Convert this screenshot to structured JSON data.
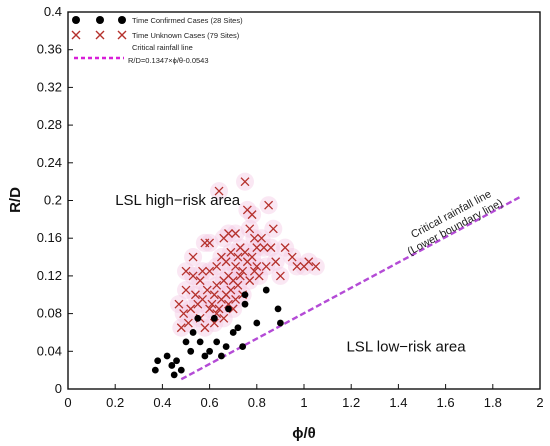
{
  "chart_data": {
    "type": "scatter",
    "xlabel": "ϕ/θ",
    "ylabel": "R/D",
    "xlim": [
      0,
      2
    ],
    "ylim": [
      0,
      0.4
    ],
    "x_ticks": [
      "0",
      "0.2",
      "0.4",
      "0.6",
      "0.8",
      "1",
      "1.2",
      "1.4",
      "1.6",
      "1.8",
      "2"
    ],
    "y_ticks": [
      "0",
      "0.04",
      "0.08",
      "0.12",
      "0.16",
      "0.2",
      "0.24",
      "0.28",
      "0.32",
      "0.36",
      "0.4"
    ],
    "grid": false,
    "legend_position": "top-left",
    "series": [
      {
        "name": "Time Confirmed Cases (28 Sites)",
        "marker": "filled-circle",
        "color": "#000000",
        "points": [
          [
            0.37,
            0.02
          ],
          [
            0.38,
            0.03
          ],
          [
            0.42,
            0.035
          ],
          [
            0.44,
            0.025
          ],
          [
            0.45,
            0.015
          ],
          [
            0.46,
            0.03
          ],
          [
            0.48,
            0.02
          ],
          [
            0.5,
            0.05
          ],
          [
            0.52,
            0.04
          ],
          [
            0.53,
            0.06
          ],
          [
            0.55,
            0.075
          ],
          [
            0.56,
            0.05
          ],
          [
            0.58,
            0.035
          ],
          [
            0.6,
            0.04
          ],
          [
            0.62,
            0.075
          ],
          [
            0.63,
            0.05
          ],
          [
            0.65,
            0.035
          ],
          [
            0.67,
            0.045
          ],
          [
            0.68,
            0.085
          ],
          [
            0.7,
            0.06
          ],
          [
            0.72,
            0.065
          ],
          [
            0.74,
            0.045
          ],
          [
            0.75,
            0.09
          ],
          [
            0.75,
            0.1
          ],
          [
            0.8,
            0.07
          ],
          [
            0.84,
            0.105
          ],
          [
            0.89,
            0.085
          ],
          [
            0.9,
            0.07
          ]
        ]
      },
      {
        "name": "Time Unknown Cases (79 Sites)",
        "marker": "x",
        "color": "#b5312c",
        "points": [
          [
            0.47,
            0.09
          ],
          [
            0.48,
            0.065
          ],
          [
            0.49,
            0.08
          ],
          [
            0.5,
            0.105
          ],
          [
            0.51,
            0.07
          ],
          [
            0.52,
            0.085
          ],
          [
            0.53,
            0.12
          ],
          [
            0.54,
            0.1
          ],
          [
            0.55,
            0.09
          ],
          [
            0.56,
            0.075
          ],
          [
            0.56,
            0.115
          ],
          [
            0.57,
            0.095
          ],
          [
            0.58,
            0.155
          ],
          [
            0.58,
            0.065
          ],
          [
            0.59,
            0.105
          ],
          [
            0.6,
            0.125
          ],
          [
            0.6,
            0.085
          ],
          [
            0.61,
            0.09
          ],
          [
            0.62,
            0.1
          ],
          [
            0.62,
            0.07
          ],
          [
            0.63,
            0.11
          ],
          [
            0.63,
            0.13
          ],
          [
            0.64,
            0.085
          ],
          [
            0.64,
            0.21
          ],
          [
            0.65,
            0.095
          ],
          [
            0.65,
            0.14
          ],
          [
            0.66,
            0.115
          ],
          [
            0.66,
            0.075
          ],
          [
            0.67,
            0.1
          ],
          [
            0.67,
            0.135
          ],
          [
            0.68,
            0.09
          ],
          [
            0.68,
            0.12
          ],
          [
            0.69,
            0.145
          ],
          [
            0.69,
            0.105
          ],
          [
            0.7,
            0.115
          ],
          [
            0.7,
            0.085
          ],
          [
            0.71,
            0.13
          ],
          [
            0.71,
            0.095
          ],
          [
            0.72,
            0.14
          ],
          [
            0.72,
            0.11
          ],
          [
            0.73,
            0.15
          ],
          [
            0.73,
            0.12
          ],
          [
            0.74,
            0.125
          ],
          [
            0.74,
            0.1
          ],
          [
            0.75,
            0.145
          ],
          [
            0.75,
            0.22
          ],
          [
            0.76,
            0.19
          ],
          [
            0.76,
            0.135
          ],
          [
            0.77,
            0.115
          ],
          [
            0.77,
            0.17
          ],
          [
            0.78,
            0.14
          ],
          [
            0.78,
            0.185
          ],
          [
            0.79,
            0.125
          ],
          [
            0.8,
            0.13
          ],
          [
            0.8,
            0.15
          ],
          [
            0.81,
            0.12
          ],
          [
            0.82,
            0.16
          ],
          [
            0.83,
            0.15
          ],
          [
            0.84,
            0.13
          ],
          [
            0.85,
            0.195
          ],
          [
            0.86,
            0.15
          ],
          [
            0.88,
            0.135
          ],
          [
            0.9,
            0.12
          ],
          [
            0.92,
            0.15
          ],
          [
            0.95,
            0.14
          ],
          [
            0.97,
            0.13
          ],
          [
            1.0,
            0.13
          ],
          [
            1.02,
            0.135
          ],
          [
            1.05,
            0.13
          ],
          [
            0.53,
            0.14
          ],
          [
            0.6,
            0.155
          ],
          [
            0.66,
            0.16
          ],
          [
            0.71,
            0.165
          ],
          [
            0.79,
            0.16
          ],
          [
            0.87,
            0.17
          ],
          [
            0.5,
            0.125
          ],
          [
            0.57,
            0.125
          ],
          [
            0.63,
            0.08
          ],
          [
            0.68,
            0.165
          ]
        ]
      }
    ],
    "critical_line": {
      "legend_label": "Critical rainfall line",
      "equation_prefix": "R/D=0.1347×ϕ/θ-0.0543",
      "color": "#b44bd6",
      "dash": true,
      "slope": 0.1347,
      "intercept": -0.0543,
      "x_range": [
        0.48,
        1.92
      ],
      "label_line1": "Critical rainfall line",
      "label_line2": "(Lower boundary line)"
    },
    "annotations": [
      {
        "text": "LSL high−risk area",
        "x": 0.2,
        "y": 0.195
      },
      {
        "text": "LSL low−risk area",
        "x": 1.18,
        "y": 0.04
      }
    ]
  }
}
